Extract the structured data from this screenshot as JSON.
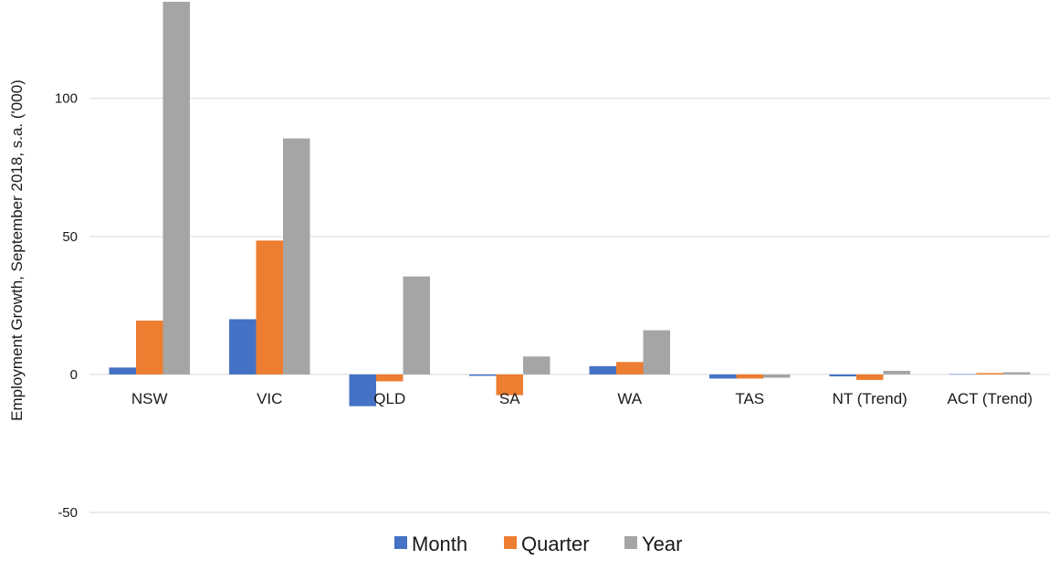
{
  "chart_data": {
    "type": "bar",
    "title": "",
    "xlabel": "",
    "ylabel": "Employment Growth, September 2018, s.a. ('000)",
    "categories": [
      "NSW",
      "VIC",
      "QLD",
      "SA",
      "WA",
      "TAS",
      "NT (Trend)",
      "ACT (Trend)"
    ],
    "series": [
      {
        "name": "Month",
        "color": "#4472c4",
        "values": [
          2.5,
          20,
          -11.5,
          -0.5,
          3,
          -1.5,
          -0.7,
          0.1
        ]
      },
      {
        "name": "Quarter",
        "color": "#ed7d31",
        "values": [
          19.5,
          48.5,
          -2.5,
          -7.5,
          4.5,
          -1.5,
          -2,
          0.5
        ]
      },
      {
        "name": "Year",
        "color": "#a5a5a5",
        "values": [
          135,
          85.5,
          35.5,
          6.5,
          16,
          -1.2,
          1.3,
          0.8
        ]
      }
    ],
    "ylim": [
      -50,
      133
    ],
    "yticks": [
      -50,
      0,
      50,
      100
    ],
    "grid": true,
    "legend_position": "bottom"
  }
}
